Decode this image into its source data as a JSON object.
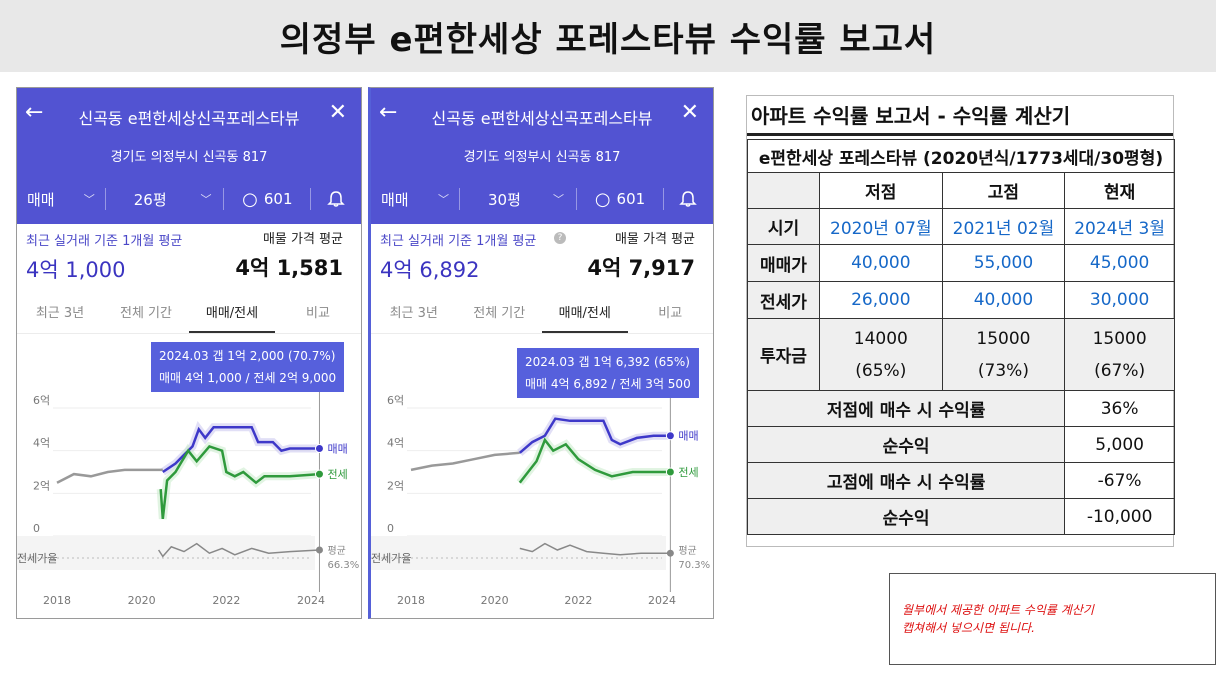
{
  "title": "의정부 e편한세상 포레스타뷰 수익률 보고서",
  "panels": [
    {
      "name": "신곡동 e편한세상신곡포레스타뷰",
      "address": "경기도 의정부시 신곡동 817",
      "deal_type": "매매",
      "size": "26평",
      "comments": "601",
      "actual_label": "최근 실거래 기준 1개월 평균",
      "actual_value": "4억 1,000",
      "listing_label": "매물 가격 평균",
      "listing_value": "4억 1,581",
      "tabs": [
        "최근 3년",
        "전체 기간",
        "매매/전세",
        "비교"
      ],
      "active_tab": 2,
      "tooltip_line1": "2024.03  갭 1억 2,000 (70.7%)",
      "tooltip_line2": "매매 4억 1,000 / 전세 2억 9,000",
      "ratio_label": "전세가율",
      "ratio_avg_label": "평균",
      "ratio_avg": "66.3%"
    },
    {
      "name": "신곡동 e편한세상신곡포레스타뷰",
      "address": "경기도 의정부시 신곡동 817",
      "deal_type": "매매",
      "size": "30평",
      "comments": "601",
      "actual_label": "최근 실거래 기준 1개월 평균",
      "actual_value": "4억 6,892",
      "listing_label": "매물 가격 평균",
      "listing_value": "4억 7,917",
      "tabs": [
        "최근 3년",
        "전체 기간",
        "매매/전세",
        "비교"
      ],
      "active_tab": 2,
      "tooltip_line1": "2024.03  갭 1억 6,392 (65%)",
      "tooltip_line2": "매매 4억 6,892 / 전세 3억 500",
      "ratio_label": "전세가율",
      "ratio_avg_label": "평균",
      "ratio_avg": "70.3%"
    }
  ],
  "chart_data": [
    {
      "type": "line",
      "ylim": [
        0,
        6
      ],
      "y_ticks": [
        "6억",
        "4억",
        "2억",
        "0"
      ],
      "x_ticks": [
        "2018",
        "2020",
        "2022",
        "2024"
      ],
      "series_labels": {
        "sale": "매매",
        "jeonse": "전세"
      },
      "colors": {
        "sale": "#3e38c9",
        "jeonse": "#2f9a3c",
        "pre": "#999999",
        "band": "#c9c5ef",
        "band2": "#cdeccf"
      },
      "pre": [
        [
          2018.0,
          2.5
        ],
        [
          2018.4,
          2.9
        ],
        [
          2018.8,
          2.8
        ],
        [
          2019.2,
          3.0
        ],
        [
          2019.6,
          3.1
        ],
        [
          2020.0,
          3.1
        ],
        [
          2020.5,
          3.1
        ]
      ],
      "sale": [
        [
          2020.5,
          3.0
        ],
        [
          2020.8,
          3.4
        ],
        [
          2021.0,
          3.8
        ],
        [
          2021.2,
          4.2
        ],
        [
          2021.35,
          5.0
        ],
        [
          2021.5,
          4.6
        ],
        [
          2021.7,
          5.1
        ],
        [
          2022.2,
          5.1
        ],
        [
          2022.6,
          5.1
        ],
        [
          2022.75,
          4.4
        ],
        [
          2023.1,
          4.4
        ],
        [
          2023.3,
          4.0
        ],
        [
          2023.5,
          4.1
        ],
        [
          2024.0,
          4.1
        ],
        [
          2024.2,
          4.1
        ]
      ],
      "jeonse": [
        [
          2020.45,
          2.2
        ],
        [
          2020.5,
          0.8
        ],
        [
          2020.6,
          2.6
        ],
        [
          2020.8,
          3.0
        ],
        [
          2021.1,
          4.0
        ],
        [
          2021.3,
          3.5
        ],
        [
          2021.6,
          4.2
        ],
        [
          2021.9,
          4.0
        ],
        [
          2022.0,
          3.0
        ],
        [
          2022.2,
          2.8
        ],
        [
          2022.4,
          3.0
        ],
        [
          2022.7,
          2.5
        ],
        [
          2022.9,
          2.8
        ],
        [
          2023.5,
          2.8
        ],
        [
          2024.2,
          2.9
        ]
      ],
      "ratio": [
        [
          2020.4,
          0.5
        ],
        [
          2020.5,
          0.1
        ],
        [
          2020.7,
          0.7
        ],
        [
          2021.0,
          0.4
        ],
        [
          2021.3,
          0.9
        ],
        [
          2021.6,
          0.3
        ],
        [
          2021.9,
          0.6
        ],
        [
          2022.2,
          0.2
        ],
        [
          2022.6,
          0.6
        ],
        [
          2023.0,
          0.3
        ],
        [
          2023.5,
          0.4
        ],
        [
          2024.2,
          0.5
        ]
      ]
    },
    {
      "type": "line",
      "ylim": [
        0,
        6
      ],
      "y_ticks": [
        "6억",
        "4억",
        "2억",
        "0"
      ],
      "x_ticks": [
        "2018",
        "2020",
        "2022",
        "2024"
      ],
      "series_labels": {
        "sale": "매매",
        "jeonse": "전세"
      },
      "colors": {
        "sale": "#3e38c9",
        "jeonse": "#2f9a3c",
        "pre": "#999999",
        "band": "#c9c5ef",
        "band2": "#cdeccf"
      },
      "pre": [
        [
          2018.0,
          3.1
        ],
        [
          2018.5,
          3.3
        ],
        [
          2019.0,
          3.4
        ],
        [
          2019.5,
          3.6
        ],
        [
          2020.0,
          3.8
        ],
        [
          2020.6,
          3.9
        ]
      ],
      "sale": [
        [
          2020.6,
          3.9
        ],
        [
          2020.9,
          4.4
        ],
        [
          2021.2,
          4.7
        ],
        [
          2021.45,
          5.5
        ],
        [
          2021.8,
          5.4
        ],
        [
          2022.3,
          5.4
        ],
        [
          2022.6,
          5.4
        ],
        [
          2022.8,
          4.5
        ],
        [
          2023.0,
          4.3
        ],
        [
          2023.4,
          4.6
        ],
        [
          2023.8,
          4.7
        ],
        [
          2024.2,
          4.7
        ]
      ],
      "jeonse": [
        [
          2020.6,
          2.5
        ],
        [
          2020.8,
          3.0
        ],
        [
          2021.0,
          3.5
        ],
        [
          2021.2,
          4.5
        ],
        [
          2021.4,
          4.0
        ],
        [
          2021.7,
          4.3
        ],
        [
          2022.0,
          3.6
        ],
        [
          2022.4,
          3.1
        ],
        [
          2022.8,
          2.8
        ],
        [
          2023.3,
          3.0
        ],
        [
          2023.8,
          3.0
        ],
        [
          2024.2,
          3.0
        ]
      ],
      "ratio": [
        [
          2020.6,
          0.6
        ],
        [
          2020.9,
          0.4
        ],
        [
          2021.2,
          0.9
        ],
        [
          2021.5,
          0.5
        ],
        [
          2021.8,
          0.8
        ],
        [
          2022.2,
          0.4
        ],
        [
          2022.6,
          0.3
        ],
        [
          2023.0,
          0.2
        ],
        [
          2023.5,
          0.3
        ],
        [
          2024.2,
          0.3
        ]
      ]
    }
  ],
  "calc": {
    "title": "아파트 수익률 보고서 - 수익률 계산기",
    "subtitle": "e편한세상 포레스타뷰 (2020년식/1773세대/30평형)",
    "headers": [
      "",
      "저점",
      "고점",
      "현재"
    ],
    "rows": [
      {
        "label": "시기",
        "values": [
          "2020년 07월",
          "2021년 02월",
          "2024년 3월"
        ]
      },
      {
        "label": "매매가",
        "values": [
          "40,000",
          "55,000",
          "45,000"
        ]
      },
      {
        "label": "전세가",
        "values": [
          "26,000",
          "40,000",
          "30,000"
        ]
      },
      {
        "label": "투자금",
        "values": [
          "14000",
          "15000",
          "15000"
        ],
        "pct": [
          "(65%)",
          "(73%)",
          "(67%)"
        ]
      }
    ],
    "results": [
      {
        "label": "저점에 매수 시 수익률",
        "value": "36%"
      },
      {
        "label": "순수익",
        "value": "5,000"
      },
      {
        "label": "고점에 매수 시 수익률",
        "value": "-67%"
      },
      {
        "label": "순수익",
        "value": "-10,000"
      }
    ]
  },
  "note": {
    "line1": "월부에서 제공한 아파트 수익률 계산기",
    "line2": "캡쳐해서 넣으시면 됩니다."
  }
}
